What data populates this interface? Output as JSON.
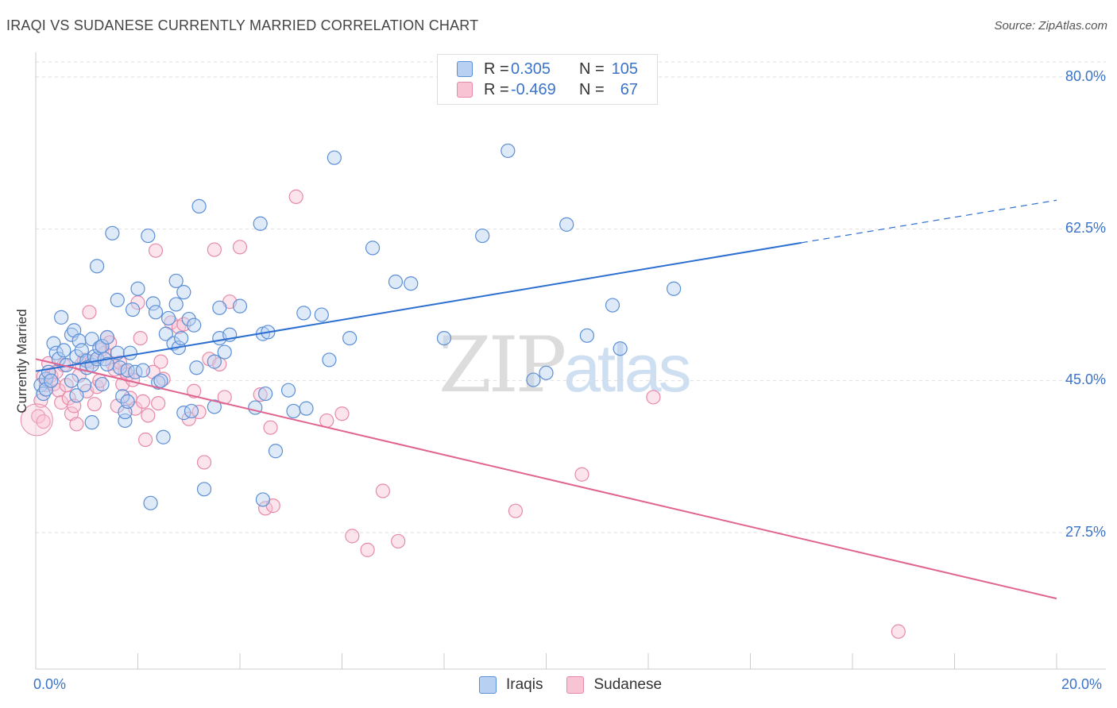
{
  "title": "IRAQI VS SUDANESE CURRENTLY MARRIED CORRELATION CHART",
  "source": "Source: ZipAtlas.com",
  "watermark": {
    "zip": "ZIP",
    "atlas": "atlas"
  },
  "legend": {
    "iraqis": {
      "r_label": "R =",
      "r_value": "0.305",
      "n_label": "N =",
      "n_value": "105"
    },
    "sudanese": {
      "r_label": "R =",
      "r_value": "-0.469",
      "n_label": "N =",
      "n_value": "67"
    }
  },
  "colors": {
    "iraqis_fill": "#b8d0f2",
    "iraqis_stroke": "#5b8fd6",
    "iraqis_line": "#2c6fd1",
    "sudanese_fill": "#f8c4d4",
    "sudanese_stroke": "#e58aa8",
    "sudanese_line": "#e0648f",
    "tick_text": "#3b73c8",
    "grid": "#dddddd"
  },
  "chart_data": {
    "type": "scatter",
    "title": "IRAQI VS SUDANESE CURRENTLY MARRIED CORRELATION CHART",
    "xlabel": "",
    "ylabel": "Currently Married",
    "xlim": [
      0,
      20
    ],
    "ylim": [
      10,
      80
    ],
    "x_ticks": [
      "0.0%",
      "20.0%"
    ],
    "y_ticks": [
      "27.5%",
      "45.0%",
      "62.5%",
      "80.0%"
    ],
    "y_tick_values": [
      27.5,
      45.0,
      62.5,
      80.0
    ],
    "grid": true,
    "legend_entries": [
      "Iraqis",
      "Sudanese"
    ],
    "series": [
      {
        "name": "Iraqis",
        "r": 0.305,
        "n": 105,
        "trend": {
          "x0": 0,
          "y0": 46.1,
          "x1": 15.0,
          "y1": 60.9,
          "dash_to_x": 20.0,
          "dash_to_y": 65.8
        },
        "points": [
          [
            0.1,
            44.5
          ],
          [
            0.15,
            43.5
          ],
          [
            0.2,
            45.2
          ],
          [
            0.2,
            44.0
          ],
          [
            0.25,
            46.0
          ],
          [
            0.3,
            45.0
          ],
          [
            0.35,
            49.3
          ],
          [
            0.4,
            48.2
          ],
          [
            0.45,
            47.5
          ],
          [
            0.5,
            52.3
          ],
          [
            0.55,
            48.5
          ],
          [
            0.6,
            46.8
          ],
          [
            0.7,
            45.0
          ],
          [
            0.7,
            50.3
          ],
          [
            0.75,
            50.8
          ],
          [
            0.8,
            47.8
          ],
          [
            0.8,
            43.3
          ],
          [
            0.85,
            49.6
          ],
          [
            0.9,
            48.5
          ],
          [
            0.95,
            44.5
          ],
          [
            1.0,
            47.3
          ],
          [
            1.0,
            46.5
          ],
          [
            1.1,
            40.2
          ],
          [
            1.1,
            46.8
          ],
          [
            1.1,
            49.8
          ],
          [
            1.15,
            47.8
          ],
          [
            1.2,
            58.2
          ],
          [
            1.2,
            47.5
          ],
          [
            1.25,
            48.8
          ],
          [
            1.3,
            44.6
          ],
          [
            1.3,
            49.0
          ],
          [
            1.35,
            47.5
          ],
          [
            1.4,
            50.0
          ],
          [
            1.4,
            46.9
          ],
          [
            1.5,
            62.0
          ],
          [
            1.6,
            54.3
          ],
          [
            1.6,
            48.2
          ],
          [
            1.65,
            46.5
          ],
          [
            1.7,
            43.2
          ],
          [
            1.75,
            40.4
          ],
          [
            1.75,
            41.4
          ],
          [
            1.8,
            42.6
          ],
          [
            1.8,
            46.2
          ],
          [
            1.85,
            48.2
          ],
          [
            1.9,
            53.2
          ],
          [
            1.95,
            46.0
          ],
          [
            2.0,
            55.6
          ],
          [
            2.1,
            46.2
          ],
          [
            2.2,
            61.7
          ],
          [
            2.25,
            30.9
          ],
          [
            2.3,
            53.9
          ],
          [
            2.35,
            52.9
          ],
          [
            2.4,
            44.8
          ],
          [
            2.45,
            45.0
          ],
          [
            2.5,
            38.5
          ],
          [
            2.55,
            50.4
          ],
          [
            2.6,
            52.2
          ],
          [
            2.7,
            49.3
          ],
          [
            2.75,
            56.5
          ],
          [
            2.75,
            53.8
          ],
          [
            2.8,
            48.8
          ],
          [
            2.85,
            49.9
          ],
          [
            2.9,
            55.2
          ],
          [
            2.9,
            41.3
          ],
          [
            3.0,
            52.1
          ],
          [
            3.05,
            41.5
          ],
          [
            3.1,
            51.4
          ],
          [
            3.15,
            46.5
          ],
          [
            3.2,
            65.1
          ],
          [
            3.3,
            32.5
          ],
          [
            3.5,
            47.2
          ],
          [
            3.5,
            42.0
          ],
          [
            3.6,
            53.4
          ],
          [
            3.6,
            49.9
          ],
          [
            3.7,
            48.3
          ],
          [
            3.8,
            50.3
          ],
          [
            4.0,
            53.6
          ],
          [
            4.3,
            41.9
          ],
          [
            4.4,
            63.1
          ],
          [
            4.45,
            50.4
          ],
          [
            4.45,
            31.3
          ],
          [
            4.5,
            43.5
          ],
          [
            4.55,
            50.6
          ],
          [
            4.7,
            36.9
          ],
          [
            4.95,
            43.9
          ],
          [
            5.05,
            41.5
          ],
          [
            5.25,
            52.8
          ],
          [
            5.3,
            41.8
          ],
          [
            5.6,
            52.6
          ],
          [
            5.75,
            47.4
          ],
          [
            5.85,
            70.7
          ],
          [
            6.15,
            49.9
          ],
          [
            6.6,
            60.3
          ],
          [
            7.05,
            56.4
          ],
          [
            7.35,
            56.2
          ],
          [
            8.0,
            49.9
          ],
          [
            8.75,
            61.7
          ],
          [
            9.25,
            71.5
          ],
          [
            9.75,
            45.1
          ],
          [
            10.0,
            45.9
          ],
          [
            10.4,
            63.0
          ],
          [
            10.8,
            50.2
          ],
          [
            11.3,
            53.7
          ],
          [
            11.45,
            48.7
          ],
          [
            12.5,
            55.6
          ]
        ]
      },
      {
        "name": "Sudanese",
        "r": -0.469,
        "n": 67,
        "trend": {
          "x0": 0,
          "y0": 47.5,
          "x1": 20.0,
          "y1": 19.9
        },
        "points": [
          [
            0.05,
            40.9
          ],
          [
            0.1,
            42.7
          ],
          [
            0.15,
            45.5
          ],
          [
            0.2,
            44.5
          ],
          [
            0.25,
            47.0
          ],
          [
            0.3,
            45.6
          ],
          [
            0.35,
            44.6
          ],
          [
            0.4,
            46.0
          ],
          [
            0.45,
            43.9
          ],
          [
            0.5,
            42.5
          ],
          [
            0.55,
            46.8
          ],
          [
            0.6,
            44.5
          ],
          [
            0.65,
            43.0
          ],
          [
            0.7,
            41.2
          ],
          [
            0.75,
            42.1
          ],
          [
            0.8,
            40.0
          ],
          [
            0.85,
            45.6
          ],
          [
            0.9,
            46.9
          ],
          [
            0.95,
            47.4
          ],
          [
            1.0,
            43.8
          ],
          [
            1.05,
            52.9
          ],
          [
            1.1,
            47.2
          ],
          [
            1.15,
            42.3
          ],
          [
            1.2,
            44.3
          ],
          [
            1.25,
            45.0
          ],
          [
            1.3,
            48.6
          ],
          [
            1.35,
            48.2
          ],
          [
            1.4,
            50.0
          ],
          [
            1.45,
            49.4
          ],
          [
            1.5,
            47.0
          ],
          [
            1.55,
            46.3
          ],
          [
            1.6,
            42.1
          ],
          [
            1.65,
            47.1
          ],
          [
            1.7,
            44.6
          ],
          [
            1.75,
            46.1
          ],
          [
            1.8,
            45.7
          ],
          [
            1.85,
            43.0
          ],
          [
            1.9,
            45.1
          ],
          [
            1.95,
            41.8
          ],
          [
            2.0,
            54.0
          ],
          [
            2.05,
            49.9
          ],
          [
            2.1,
            42.6
          ],
          [
            2.15,
            38.2
          ],
          [
            2.2,
            41.0
          ],
          [
            2.3,
            46.0
          ],
          [
            2.35,
            60.0
          ],
          [
            2.4,
            42.4
          ],
          [
            2.45,
            47.2
          ],
          [
            2.5,
            45.2
          ],
          [
            2.65,
            51.7
          ],
          [
            2.8,
            51.2
          ],
          [
            2.9,
            51.5
          ],
          [
            3.0,
            40.6
          ],
          [
            3.1,
            43.8
          ],
          [
            3.2,
            41.4
          ],
          [
            3.3,
            35.6
          ],
          [
            3.4,
            47.5
          ],
          [
            3.5,
            60.1
          ],
          [
            3.6,
            46.9
          ],
          [
            3.7,
            43.1
          ],
          [
            3.8,
            54.1
          ],
          [
            4.0,
            60.4
          ],
          [
            4.4,
            43.4
          ],
          [
            4.6,
            39.6
          ],
          [
            5.1,
            66.2
          ],
          [
            5.7,
            40.4
          ],
          [
            6.0,
            41.2
          ]
        ]
      }
    ],
    "extra_sudanese_points": [
      [
        6.5,
        25.5
      ],
      [
        6.8,
        32.3
      ],
      [
        7.1,
        26.5
      ],
      [
        6.2,
        27.1
      ],
      [
        9.4,
        30.0
      ],
      [
        10.7,
        34.2
      ],
      [
        12.1,
        43.1
      ],
      [
        16.9,
        16.1
      ],
      [
        4.5,
        30.3
      ],
      [
        4.65,
        30.6
      ],
      [
        0.15,
        40.3
      ]
    ]
  },
  "x_tick_labels": {
    "left": "0.0%",
    "right": "20.0%"
  },
  "y_tick_labels": [
    "80.0%",
    "62.5%",
    "45.0%",
    "27.5%"
  ],
  "ylabel": "Currently Married",
  "bottom_legend": {
    "iraqis": "Iraqis",
    "sudanese": "Sudanese"
  }
}
